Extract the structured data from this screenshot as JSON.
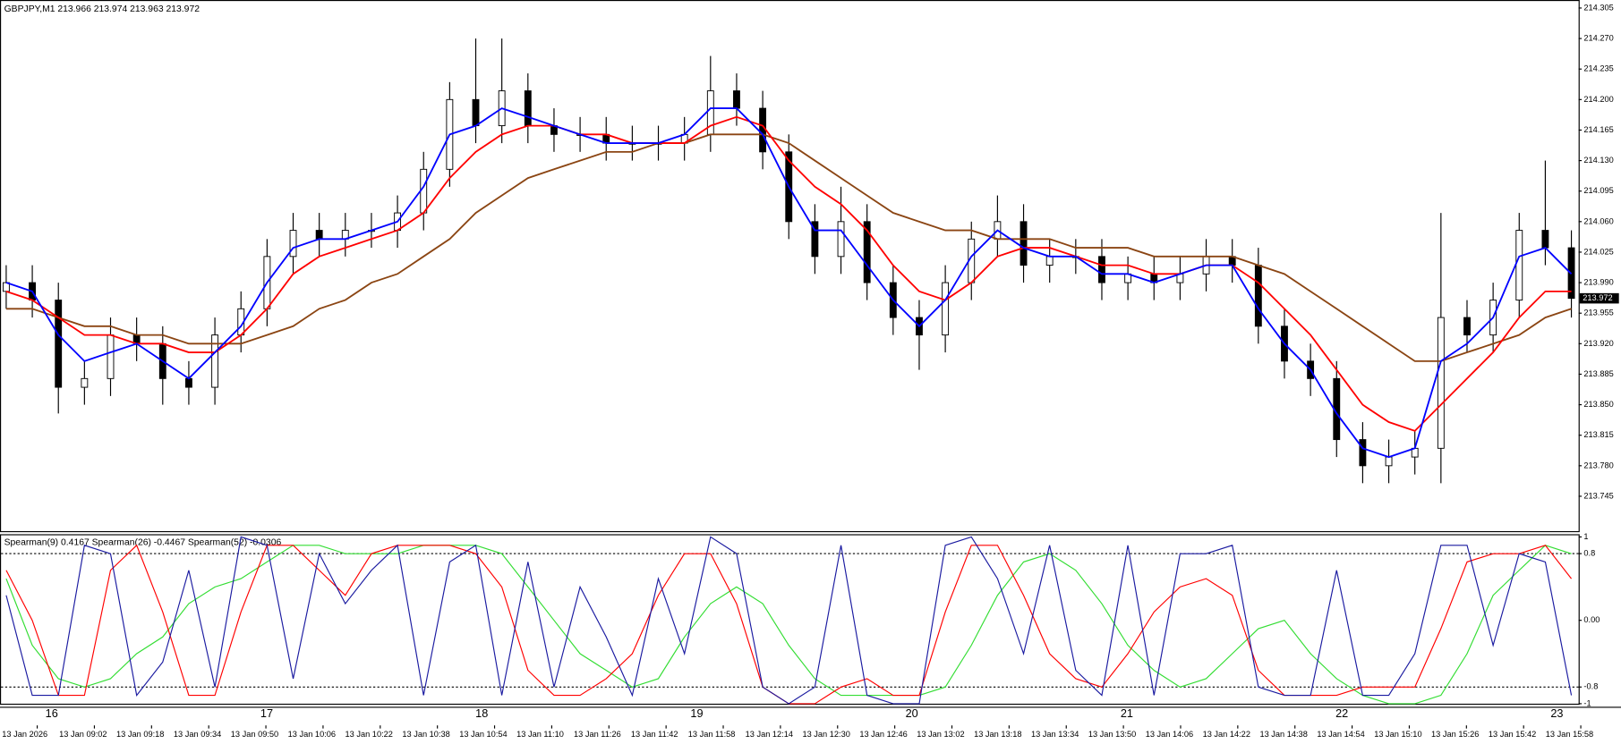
{
  "chart_data": [
    {
      "type": "candlestick",
      "title": "GBPJPY,M1  213.966 213.974 213.963 213.972",
      "ylim": [
        213.705,
        214.313
      ],
      "yticks": [
        214.305,
        {
          "value": 214.27,
          "label": "214.270"
        },
        214.235,
        {
          "value": 214.2,
          "label": "214.200"
        },
        214.165,
        {
          "value": 214.13,
          "label": "214.130"
        },
        214.095,
        {
          "value": 214.06,
          "label": "214.060"
        },
        214.025,
        {
          "value": 213.99,
          "label": "213.990"
        },
        213.955,
        {
          "value": 213.92,
          "label": "213.920"
        },
        213.885,
        {
          "value": 213.85,
          "label": "213.850"
        },
        213.815,
        {
          "value": 213.78,
          "label": "213.780"
        },
        213.745
      ],
      "last_price": 213.972,
      "up_color": "#ffffff",
      "down_color": "#000000",
      "open": [
        213.98,
        213.99,
        213.97,
        213.87,
        213.88,
        213.93,
        213.92,
        213.88,
        213.87,
        213.93,
        213.96,
        214.02,
        214.05,
        214.04,
        214.05,
        214.05,
        214.07,
        214.12,
        214.2,
        214.17,
        214.21,
        214.17,
        214.16,
        214.16,
        214.15,
        214.15,
        214.15,
        214.16,
        214.21,
        214.19,
        214.14,
        214.06,
        214.02,
        214.06,
        213.99,
        213.95,
        213.93,
        213.99,
        214.04,
        214.06,
        214.01,
        214.02,
        214.02,
        213.99,
        214.0,
        213.99,
        214.0,
        214.02,
        214.01,
        213.94,
        213.9,
        213.88,
        213.81,
        213.78,
        213.79,
        213.8,
        213.95,
        213.93,
        213.97,
        214.05,
        214.03
      ],
      "high": [
        214.01,
        214.01,
        213.99,
        213.9,
        213.95,
        213.95,
        213.94,
        213.9,
        213.95,
        213.98,
        214.04,
        214.07,
        214.07,
        214.07,
        214.07,
        214.09,
        214.14,
        214.22,
        214.27,
        214.27,
        214.23,
        214.19,
        214.18,
        214.18,
        214.17,
        214.17,
        214.18,
        214.25,
        214.23,
        214.21,
        214.16,
        214.08,
        214.1,
        214.08,
        214.01,
        213.97,
        214.01,
        214.06,
        214.09,
        214.08,
        214.04,
        214.04,
        214.04,
        214.02,
        214.02,
        214.02,
        214.04,
        214.04,
        214.03,
        213.96,
        213.92,
        213.9,
        213.83,
        213.81,
        213.82,
        214.07,
        213.97,
        213.99,
        214.07,
        214.13,
        214.05
      ],
      "low": [
        213.96,
        213.95,
        213.84,
        213.85,
        213.86,
        213.9,
        213.85,
        213.85,
        213.85,
        213.91,
        213.94,
        214.0,
        214.02,
        214.02,
        214.03,
        214.03,
        214.05,
        214.1,
        214.15,
        214.15,
        214.15,
        214.14,
        214.14,
        214.13,
        214.13,
        214.13,
        214.13,
        214.14,
        214.17,
        214.12,
        214.04,
        214.0,
        214.0,
        213.97,
        213.93,
        213.89,
        213.91,
        213.97,
        214.02,
        213.99,
        213.99,
        214.0,
        213.97,
        213.97,
        213.97,
        213.97,
        213.98,
        213.99,
        213.92,
        213.88,
        213.86,
        213.79,
        213.76,
        213.76,
        213.77,
        213.76,
        213.91,
        213.91,
        213.95,
        214.01,
        213.95
      ],
      "close": [
        213.99,
        213.97,
        213.87,
        213.88,
        213.93,
        213.92,
        213.88,
        213.87,
        213.93,
        213.96,
        214.02,
        214.05,
        214.04,
        214.05,
        214.05,
        214.07,
        214.12,
        214.2,
        214.17,
        214.21,
        214.17,
        214.16,
        214.16,
        214.15,
        214.15,
        214.15,
        214.16,
        214.21,
        214.19,
        214.14,
        214.06,
        214.02,
        214.06,
        213.99,
        213.95,
        213.93,
        213.99,
        214.04,
        214.06,
        214.01,
        214.02,
        214.02,
        213.99,
        214.0,
        213.99,
        214.0,
        214.02,
        214.01,
        213.94,
        213.9,
        213.88,
        213.81,
        213.78,
        213.79,
        213.8,
        213.95,
        213.93,
        213.97,
        214.05,
        214.03,
        213.972
      ],
      "series": [
        {
          "color": "#8b4513",
          "values": [
            213.96,
            213.96,
            213.95,
            213.94,
            213.94,
            213.93,
            213.93,
            213.92,
            213.92,
            213.92,
            213.93,
            213.94,
            213.96,
            213.97,
            213.99,
            214.0,
            214.02,
            214.04,
            214.07,
            214.09,
            214.11,
            214.12,
            214.13,
            214.14,
            214.14,
            214.15,
            214.15,
            214.16,
            214.16,
            214.16,
            214.15,
            214.13,
            214.11,
            214.09,
            214.07,
            214.06,
            214.05,
            214.05,
            214.04,
            214.04,
            214.04,
            214.03,
            214.03,
            214.03,
            214.02,
            214.02,
            214.02,
            214.02,
            214.01,
            214.0,
            213.98,
            213.96,
            213.94,
            213.92,
            213.9,
            213.9,
            213.91,
            213.92,
            213.93,
            213.95,
            213.96
          ]
        },
        {
          "color": "#ff0000",
          "values": [
            213.98,
            213.97,
            213.95,
            213.93,
            213.93,
            213.92,
            213.92,
            213.91,
            213.91,
            213.93,
            213.96,
            214.0,
            214.02,
            214.03,
            214.04,
            214.05,
            214.07,
            214.11,
            214.14,
            214.16,
            214.17,
            214.17,
            214.16,
            214.16,
            214.15,
            214.15,
            214.15,
            214.17,
            214.18,
            214.17,
            214.13,
            214.1,
            214.08,
            214.05,
            214.01,
            213.98,
            213.97,
            213.99,
            214.02,
            214.03,
            214.03,
            214.02,
            214.01,
            214.01,
            214.0,
            214.0,
            214.01,
            214.01,
            213.99,
            213.96,
            213.93,
            213.89,
            213.85,
            213.83,
            213.82,
            213.85,
            213.88,
            213.91,
            213.95,
            213.98,
            213.98
          ]
        },
        {
          "color": "#0000ff",
          "values": [
            213.99,
            213.98,
            213.93,
            213.9,
            213.91,
            213.92,
            213.9,
            213.88,
            213.91,
            213.94,
            213.99,
            214.03,
            214.04,
            214.04,
            214.05,
            214.06,
            214.1,
            214.16,
            214.17,
            214.19,
            214.18,
            214.17,
            214.16,
            214.15,
            214.15,
            214.15,
            214.16,
            214.19,
            214.19,
            214.16,
            214.1,
            214.05,
            214.05,
            214.01,
            213.97,
            213.94,
            213.97,
            214.02,
            214.05,
            214.03,
            214.02,
            214.02,
            214.0,
            214.0,
            213.99,
            214.0,
            214.01,
            214.01,
            213.96,
            213.92,
            213.89,
            213.84,
            213.8,
            213.79,
            213.8,
            213.9,
            213.92,
            213.95,
            214.02,
            214.03,
            214.0
          ]
        }
      ]
    },
    {
      "type": "line",
      "title": "Spearman(9) 0.4167  Spearman(26) -0.4467  Spearman(52) -0.0306",
      "ylim": [
        -1.0,
        1.02
      ],
      "yticks": [
        1,
        0.8,
        {
          "value": 0,
          "label": "0.00"
        },
        -0.8,
        -1
      ],
      "levels": [
        0.8,
        -0.8
      ],
      "series": [
        {
          "color": "#33dd33",
          "values": [
            0.5,
            -0.3,
            -0.7,
            -0.8,
            -0.7,
            -0.4,
            -0.2,
            0.2,
            0.4,
            0.5,
            0.7,
            0.9,
            0.9,
            0.8,
            0.8,
            0.8,
            0.9,
            0.9,
            0.9,
            0.8,
            0.4,
            0.0,
            -0.4,
            -0.6,
            -0.8,
            -0.7,
            -0.2,
            0.2,
            0.4,
            0.2,
            -0.3,
            -0.7,
            -0.9,
            -0.9,
            -0.9,
            -0.9,
            -0.8,
            -0.3,
            0.3,
            0.7,
            0.8,
            0.6,
            0.2,
            -0.3,
            -0.6,
            -0.8,
            -0.7,
            -0.4,
            -0.1,
            0.0,
            -0.4,
            -0.7,
            -0.9,
            -1.0,
            -1.0,
            -0.9,
            -0.4,
            0.3,
            0.6,
            0.9,
            0.8
          ]
        },
        {
          "color": "#ff0000",
          "values": [
            0.6,
            0.0,
            -0.9,
            -0.9,
            0.6,
            0.9,
            0.1,
            -0.9,
            -0.9,
            0.1,
            0.9,
            0.9,
            0.6,
            0.3,
            0.8,
            0.9,
            0.9,
            0.9,
            0.8,
            0.4,
            -0.6,
            -0.9,
            -0.9,
            -0.7,
            -0.4,
            0.3,
            0.8,
            0.8,
            0.2,
            -0.8,
            -1.0,
            -1.0,
            -0.8,
            -0.7,
            -0.9,
            -0.9,
            0.1,
            0.9,
            0.9,
            0.3,
            -0.4,
            -0.7,
            -0.8,
            -0.4,
            0.1,
            0.4,
            0.5,
            0.3,
            -0.6,
            -0.9,
            -0.9,
            -0.9,
            -0.8,
            -0.8,
            -0.8,
            -0.1,
            0.7,
            0.8,
            0.8,
            0.9,
            0.5
          ]
        },
        {
          "color": "#1a1aa0",
          "values": [
            0.3,
            -0.9,
            -0.9,
            0.9,
            0.8,
            -0.9,
            -0.5,
            0.6,
            -0.8,
            1.0,
            0.9,
            -0.7,
            0.8,
            0.2,
            0.6,
            0.9,
            -0.9,
            0.7,
            0.9,
            -0.9,
            0.7,
            -0.8,
            0.4,
            -0.2,
            -0.9,
            0.5,
            -0.4,
            1.0,
            0.8,
            -0.8,
            -1.0,
            -0.8,
            0.9,
            -0.9,
            -1.0,
            -1.0,
            0.9,
            1.0,
            0.5,
            -0.4,
            0.9,
            -0.6,
            -0.9,
            0.9,
            -0.9,
            0.8,
            0.8,
            0.9,
            -0.8,
            -0.9,
            -0.9,
            0.6,
            -0.9,
            -0.9,
            -0.4,
            0.9,
            0.9,
            -0.3,
            0.8,
            0.7,
            -0.9
          ]
        }
      ]
    }
  ],
  "time_axis": {
    "period_labels": [
      "16",
      "17",
      "18",
      "19",
      "20",
      "21",
      "22",
      "23"
    ],
    "time_labels": [
      "13 Jan 2026",
      "13 Jan 09:02",
      "13 Jan 09:18",
      "13 Jan 09:34",
      "13 Jan 09:50",
      "13 Jan 10:06",
      "13 Jan 10:22",
      "13 Jan 10:38",
      "13 Jan 10:54",
      "13 Jan 11:10",
      "13 Jan 11:26",
      "13 Jan 11:42",
      "13 Jan 11:58",
      "13 Jan 12:14",
      "13 Jan 12:30",
      "13 Jan 12:46",
      "13 Jan 13:02",
      "13 Jan 13:18",
      "13 Jan 13:34",
      "13 Jan 13:50",
      "13 Jan 14:06",
      "13 Jan 14:22",
      "13 Jan 14:38",
      "13 Jan 14:54",
      "13 Jan 15:10",
      "13 Jan 15:26",
      "13 Jan 15:42",
      "13 Jan 15:58"
    ]
  }
}
